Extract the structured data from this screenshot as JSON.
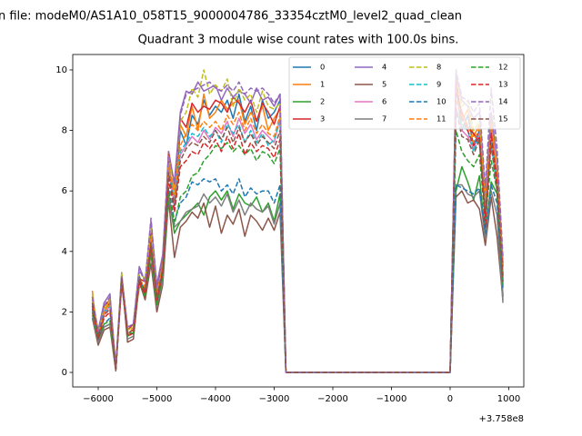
{
  "chart_data": {
    "type": "line",
    "title": "n file: modeM0/AS1A10_058T15_9000004786_33354cztM0_level2_quad_clean",
    "subtitle": "Quadrant 3 module wise count rates with 100.0s bins.",
    "x_offset_text": "+3.758e8",
    "x": [
      -6100,
      -6000,
      -5900,
      -5800,
      -5700,
      -5600,
      -5500,
      -5400,
      -5300,
      -5200,
      -5100,
      -5000,
      -4900,
      -4800,
      -4700,
      -4600,
      -4500,
      -4400,
      -4300,
      -4200,
      -4100,
      -4000,
      -3900,
      -3800,
      -3700,
      -3600,
      -3500,
      -3400,
      -3300,
      -3200,
      -3100,
      -3000,
      -2900,
      -2800,
      0,
      100,
      200,
      300,
      400,
      500,
      600,
      700,
      800,
      900
    ],
    "xlim": [
      -6434,
      1256
    ],
    "xticks": [
      {
        "value": -6000,
        "label": "−6000"
      },
      {
        "value": -5000,
        "label": "−5000"
      },
      {
        "value": -4000,
        "label": "−4000"
      },
      {
        "value": -3000,
        "label": "−3000"
      },
      {
        "value": -2000,
        "label": "−2000"
      },
      {
        "value": -1000,
        "label": "−1000"
      },
      0,
      1000
    ],
    "ylim": [
      -0.48,
      10.51
    ],
    "yticks": [
      0,
      2,
      4,
      6,
      8,
      10
    ],
    "legend_columns": 4,
    "series": [
      {
        "name": "0",
        "color": "#1f77b4",
        "linestyle": "solid",
        "values": [
          2.5,
          1.2,
          2.0,
          2.3,
          0.1,
          3.0,
          1.3,
          1.4,
          3.0,
          2.7,
          4.5,
          2.5,
          3.5,
          7.0,
          5.5,
          8.0,
          7.5,
          8.5,
          8.2,
          9.0,
          8.5,
          8.8,
          8.6,
          9.0,
          8.4,
          9.2,
          8.3,
          8.8,
          8.0,
          9.0,
          8.4,
          8.6,
          9.0,
          0,
          0,
          9.5,
          8.0,
          8.5,
          7.5,
          8.0,
          5.0,
          8.0,
          6.0,
          2.5
        ]
      },
      {
        "name": "1",
        "color": "#ff7f0e",
        "linestyle": "solid",
        "values": [
          2.7,
          1.0,
          1.9,
          2.5,
          0.2,
          3.1,
          1.2,
          1.5,
          2.8,
          2.9,
          4.2,
          2.6,
          3.8,
          6.8,
          6.0,
          8.2,
          7.8,
          8.8,
          8.0,
          9.2,
          8.4,
          8.6,
          9.0,
          8.7,
          8.9,
          9.0,
          8.2,
          8.6,
          8.3,
          8.8,
          8.0,
          8.4,
          8.7,
          0,
          0,
          9.6,
          8.3,
          8.7,
          7.8,
          8.2,
          5.5,
          8.3,
          6.5,
          3.2
        ]
      },
      {
        "name": "2",
        "color": "#2ca02c",
        "linestyle": "solid",
        "values": [
          2.0,
          1.1,
          1.5,
          1.6,
          0.1,
          3.1,
          1.3,
          1.3,
          3.2,
          2.5,
          4.0,
          2.3,
          3.2,
          5.9,
          4.6,
          5.0,
          5.2,
          5.4,
          5.6,
          5.2,
          5.8,
          6.0,
          5.7,
          6.0,
          5.4,
          5.9,
          5.6,
          5.5,
          5.8,
          5.3,
          5.6,
          5.0,
          5.9,
          0,
          0,
          6.0,
          6.8,
          6.3,
          5.7,
          6.5,
          4.5,
          6.3,
          5.9,
          3.0
        ]
      },
      {
        "name": "3",
        "color": "#d62728",
        "linestyle": "solid",
        "values": [
          2.2,
          1.3,
          2.2,
          2.4,
          0.1,
          2.9,
          1.4,
          1.6,
          3.1,
          3.0,
          4.6,
          2.8,
          3.6,
          7.3,
          6.2,
          8.4,
          8.1,
          8.9,
          8.6,
          8.8,
          8.7,
          9.0,
          8.9,
          8.6,
          9.1,
          8.9,
          8.6,
          9.0,
          8.3,
          8.9,
          8.6,
          8.2,
          8.8,
          0,
          0,
          9.3,
          8.6,
          8.1,
          7.9,
          7.6,
          5.2,
          7.8,
          6.4,
          3.5
        ]
      },
      {
        "name": "4",
        "color": "#9467bd",
        "linestyle": "solid",
        "values": [
          2.4,
          1.4,
          2.3,
          2.6,
          0.2,
          3.2,
          1.5,
          1.6,
          3.5,
          3.0,
          5.0,
          2.9,
          3.9,
          7.1,
          6.3,
          8.6,
          9.3,
          9.2,
          9.6,
          9.3,
          9.4,
          9.5,
          9.0,
          9.4,
          9.1,
          9.3,
          9.2,
          8.9,
          9.4,
          9.0,
          9.1,
          8.8,
          9.2,
          0,
          0,
          9.9,
          9.0,
          8.8,
          8.4,
          8.6,
          5.9,
          8.6,
          7.0,
          3.6
        ]
      },
      {
        "name": "5",
        "color": "#8c564b",
        "linestyle": "solid",
        "values": [
          1.8,
          0.9,
          1.4,
          1.5,
          0.05,
          3.2,
          1.0,
          1.1,
          3.0,
          2.4,
          3.6,
          2.0,
          2.9,
          5.7,
          3.8,
          4.8,
          5.0,
          5.3,
          5.1,
          5.6,
          4.8,
          5.5,
          4.6,
          5.2,
          4.9,
          5.4,
          4.5,
          5.2,
          5.0,
          4.7,
          5.1,
          4.7,
          5.3,
          0,
          0,
          5.8,
          6.0,
          5.6,
          5.7,
          5.4,
          4.2,
          5.8,
          4.5,
          2.4
        ]
      },
      {
        "name": "6",
        "color": "#e377c2",
        "linestyle": "solid",
        "values": [
          2.3,
          1.2,
          1.9,
          2.2,
          0.1,
          3.0,
          1.3,
          1.4,
          3.0,
          2.8,
          4.4,
          2.5,
          3.4,
          6.6,
          5.6,
          7.2,
          7.5,
          7.8,
          7.6,
          8.0,
          7.7,
          8.1,
          7.9,
          8.3,
          7.8,
          8.4,
          7.9,
          8.2,
          7.7,
          8.0,
          7.8,
          7.6,
          8.4,
          0,
          0,
          8.8,
          8.0,
          7.8,
          7.4,
          7.9,
          5.6,
          7.7,
          6.2,
          3.0
        ]
      },
      {
        "name": "7",
        "color": "#7f7f7f",
        "linestyle": "solid",
        "values": [
          1.9,
          1.0,
          1.5,
          1.6,
          0.1,
          3.3,
          1.1,
          1.2,
          3.1,
          2.6,
          3.9,
          2.2,
          3.0,
          5.8,
          4.8,
          5.0,
          5.3,
          5.4,
          5.5,
          5.9,
          5.6,
          5.8,
          5.5,
          5.9,
          5.3,
          5.7,
          5.2,
          5.6,
          5.4,
          5.3,
          5.5,
          4.9,
          5.6,
          0,
          0,
          6.2,
          6.2,
          5.9,
          5.8,
          6.0,
          4.4,
          6.0,
          5.2,
          2.3
        ]
      },
      {
        "name": "8",
        "color": "#bcbd22",
        "linestyle": "dashed",
        "values": [
          2.6,
          1.3,
          2.1,
          2.4,
          0.2,
          3.3,
          1.4,
          1.5,
          3.3,
          3.1,
          4.8,
          2.7,
          3.7,
          7.2,
          6.1,
          8.3,
          8.6,
          9.4,
          9.1,
          10.0,
          9.2,
          9.5,
          9.3,
          9.7,
          8.8,
          9.4,
          9.0,
          9.2,
          8.6,
          9.3,
          8.8,
          8.7,
          8.9,
          0,
          0,
          9.7,
          8.8,
          9.0,
          8.0,
          8.3,
          6.0,
          9.3,
          7.2,
          3.8
        ]
      },
      {
        "name": "9",
        "color": "#17becf",
        "linestyle": "dashed",
        "values": [
          2.3,
          1.2,
          2.0,
          2.2,
          0.1,
          3.0,
          1.3,
          1.4,
          3.0,
          2.7,
          4.3,
          2.5,
          3.4,
          6.7,
          5.7,
          7.3,
          7.6,
          7.9,
          7.8,
          8.1,
          7.8,
          8.0,
          7.6,
          8.2,
          7.9,
          8.2,
          7.6,
          8.0,
          7.6,
          7.9,
          7.5,
          7.7,
          8.3,
          0,
          0,
          8.6,
          8.2,
          8.0,
          7.3,
          7.8,
          5.4,
          7.6,
          6.1,
          3.1
        ]
      },
      {
        "name": "10",
        "color": "#1f77b4",
        "linestyle": "dashed",
        "values": [
          2.1,
          1.1,
          1.6,
          1.8,
          0.1,
          3.1,
          1.2,
          1.3,
          3.1,
          2.6,
          4.1,
          2.3,
          3.3,
          6.1,
          5.0,
          5.6,
          5.8,
          6.3,
          6.2,
          6.4,
          6.3,
          6.4,
          6.0,
          6.2,
          5.9,
          6.4,
          5.8,
          6.1,
          5.9,
          6.0,
          6.0,
          5.6,
          6.2,
          0,
          0,
          6.2,
          6.1,
          6.0,
          5.9,
          6.1,
          4.6,
          6.2,
          5.6,
          2.8
        ]
      },
      {
        "name": "11",
        "color": "#ff7f0e",
        "linestyle": "dashed",
        "values": [
          2.4,
          1.2,
          2.0,
          2.3,
          0.1,
          3.1,
          1.3,
          1.4,
          3.1,
          2.8,
          4.4,
          2.6,
          3.5,
          6.9,
          5.8,
          7.5,
          7.9,
          8.2,
          8.0,
          8.3,
          8.1,
          8.3,
          8.0,
          8.5,
          8.2,
          8.6,
          8.0,
          8.4,
          7.9,
          8.2,
          7.9,
          7.8,
          8.5,
          0,
          0,
          9.0,
          8.5,
          8.2,
          7.6,
          8.1,
          5.7,
          8.0,
          6.5,
          3.3
        ]
      },
      {
        "name": "12",
        "color": "#2ca02c",
        "linestyle": "dashed",
        "values": [
          2.0,
          1.1,
          1.6,
          1.7,
          0.1,
          3.1,
          1.2,
          1.3,
          3.1,
          2.5,
          4.0,
          2.2,
          3.2,
          6.0,
          4.9,
          5.8,
          6.0,
          6.5,
          6.6,
          7.0,
          7.2,
          7.5,
          7.4,
          7.6,
          7.3,
          7.5,
          7.2,
          7.4,
          7.0,
          7.3,
          7.2,
          6.9,
          7.4,
          0,
          0,
          8.0,
          7.3,
          7.0,
          6.8,
          7.2,
          5.0,
          7.0,
          6.0,
          2.9
        ]
      },
      {
        "name": "13",
        "color": "#d62728",
        "linestyle": "dashed",
        "values": [
          2.2,
          1.1,
          1.8,
          2.0,
          0.1,
          3.0,
          1.2,
          1.3,
          3.0,
          2.6,
          4.2,
          2.4,
          3.3,
          6.4,
          5.3,
          6.8,
          7.0,
          7.3,
          7.2,
          7.6,
          7.4,
          7.7,
          7.3,
          7.8,
          7.4,
          7.9,
          7.2,
          7.6,
          7.3,
          7.5,
          7.4,
          7.1,
          7.7,
          0,
          0,
          9.7,
          8.4,
          8.0,
          7.5,
          7.8,
          4.8,
          7.9,
          6.3,
          3.2
        ]
      },
      {
        "name": "14",
        "color": "#9467bd",
        "linestyle": "dashed",
        "values": [
          2.5,
          1.3,
          2.2,
          2.5,
          0.2,
          3.2,
          1.5,
          1.6,
          3.4,
          3.0,
          5.1,
          2.8,
          3.8,
          7.3,
          6.2,
          8.5,
          9.2,
          9.3,
          9.4,
          9.5,
          9.6,
          9.4,
          9.3,
          9.5,
          9.3,
          9.6,
          9.2,
          9.4,
          9.3,
          9.4,
          9.2,
          8.9,
          9.2,
          0,
          0,
          10.0,
          9.1,
          9.0,
          8.6,
          8.9,
          6.1,
          9.4,
          7.4,
          3.8
        ]
      },
      {
        "name": "15",
        "color": "#8c564b",
        "linestyle": "dashed",
        "values": [
          2.3,
          1.2,
          1.9,
          2.1,
          0.1,
          3.1,
          1.3,
          1.4,
          3.1,
          2.7,
          4.3,
          2.5,
          3.4,
          6.6,
          5.5,
          7.0,
          7.4,
          7.6,
          7.5,
          7.8,
          7.6,
          8.0,
          7.7,
          8.1,
          7.6,
          8.1,
          7.6,
          7.9,
          7.5,
          7.8,
          7.6,
          7.4,
          8.0,
          0,
          0,
          8.7,
          7.8,
          7.7,
          7.2,
          7.7,
          5.3,
          7.5,
          6.0,
          3.0
        ]
      }
    ]
  }
}
